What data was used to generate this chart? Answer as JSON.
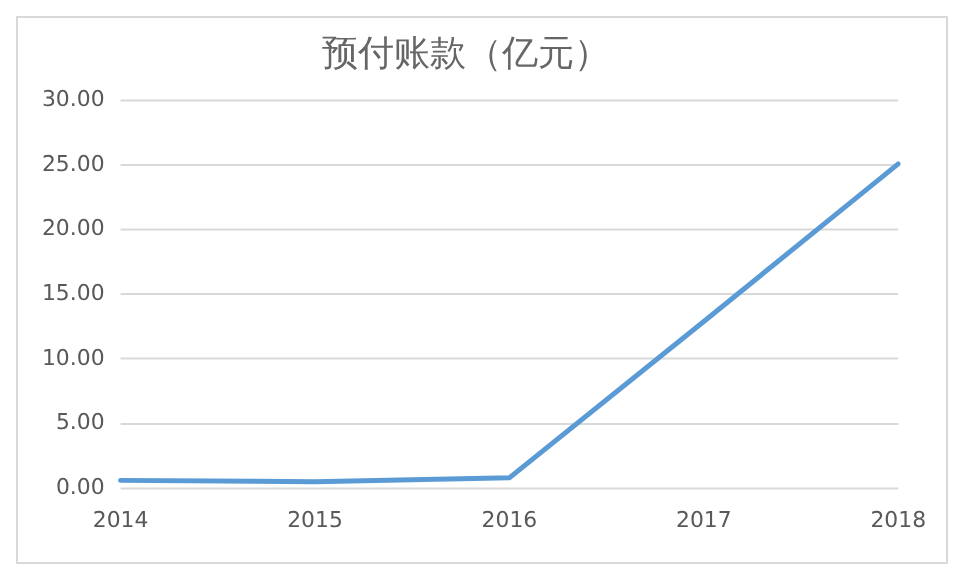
{
  "chart_data": {
    "type": "line",
    "title": "预付账款（亿元）",
    "categories": [
      "2014",
      "2015",
      "2016",
      "2017",
      "2018"
    ],
    "series": [
      {
        "color": "#5b9bd5",
        "values": [
          0.6,
          0.5,
          0.8,
          12.9,
          25.1
        ]
      }
    ],
    "ylim": [
      0,
      30
    ],
    "yticks": [
      {
        "value": 0,
        "label": "0.00"
      },
      {
        "value": 5,
        "label": "5.00"
      },
      {
        "value": 10,
        "label": "10.00"
      },
      {
        "value": 15,
        "label": "15.00"
      },
      {
        "value": 20,
        "label": "20.00"
      },
      {
        "value": 25,
        "label": "25.00"
      },
      {
        "value": 30,
        "label": "30.00"
      }
    ],
    "grid": "y",
    "marker": "none",
    "line_style": "solid"
  }
}
